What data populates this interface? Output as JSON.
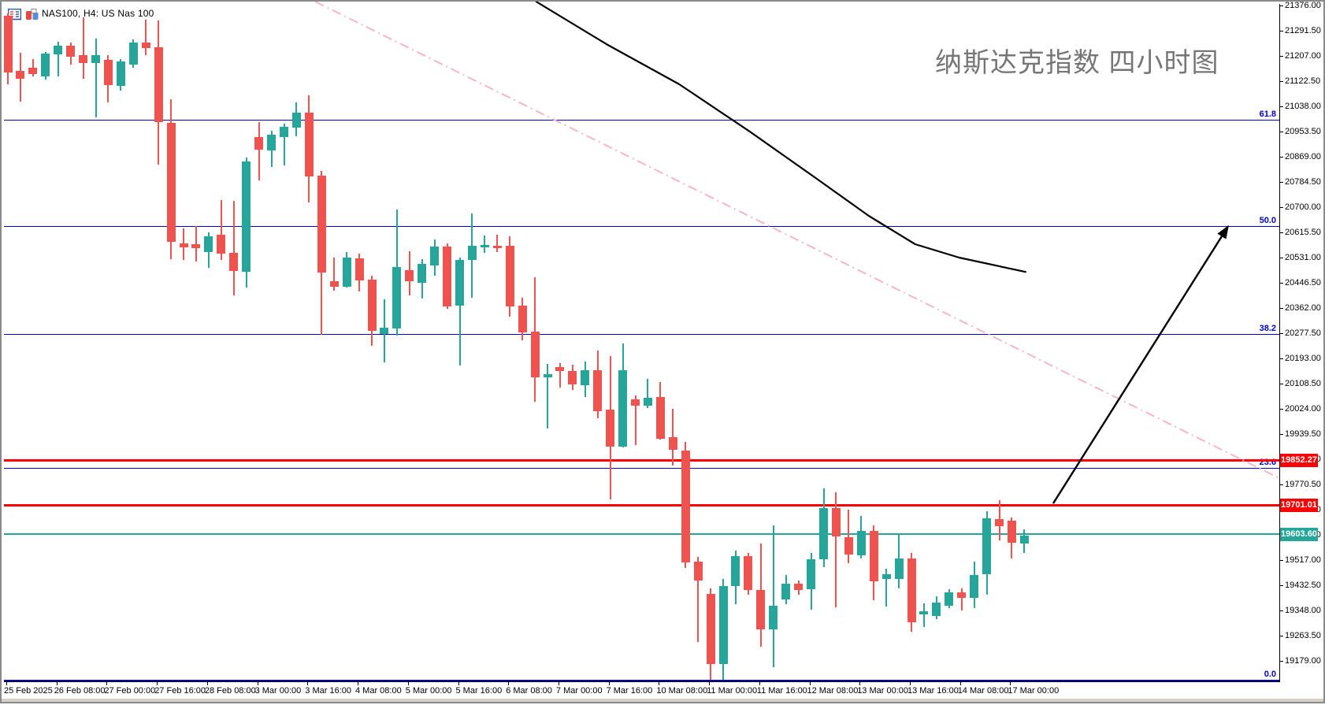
{
  "window": {
    "symbol_label": "NAS100, H4:  US Nas 100",
    "icons": [
      {
        "name": "quotes-icon"
      },
      {
        "name": "charts-icon"
      }
    ]
  },
  "title": {
    "text": "纳斯达克指数 四小时图",
    "color": "#767676"
  },
  "colors": {
    "background": "#ffffff",
    "up_candle": "#26a69a",
    "down_candle": "#ef5350",
    "fib_line": "#0000c8",
    "resistance_line": "#ff0000",
    "support_teal_line": "#26a69a",
    "pink_trendline": "#f5b6c8",
    "annotation_black": "#000000",
    "axis_text": "#000000",
    "tag_text": "#ffffff"
  },
  "chart_data": {
    "type": "candlestick",
    "symbol": "NAS100",
    "timeframe": "H4",
    "description": "US Nas 100",
    "grid": false,
    "ylim": [
      19110.4,
      21389.2
    ],
    "y_ticks": [
      "21376.00",
      "21291.50",
      "21207.00",
      "21122.50",
      "21038.00",
      "20953.50",
      "20869.00",
      "20784.50",
      "20700.00",
      "20615.50",
      "20531.00",
      "20446.50",
      "20362.00",
      "20277.50",
      "20193.00",
      "20108.50",
      "20024.00",
      "19939.50",
      "19855.00",
      "19770.50",
      "19686.00",
      "19601.50",
      "19517.00",
      "19432.50",
      "19348.00",
      "19263.50",
      "19179.00"
    ],
    "x_ticks": [
      "25 Feb 2025",
      "26 Feb 08:00",
      "27 Feb 00:00",
      "27 Feb 16:00",
      "28 Feb 08:00",
      "3 Mar 00:00",
      "3 Mar 16:00",
      "4 Mar 08:00",
      "5 Mar 00:00",
      "5 Mar 16:00",
      "6 Mar 08:00",
      "7 Mar 00:00",
      "7 Mar 16:00",
      "10 Mar 08:00",
      "11 Mar 00:00",
      "11 Mar 16:00",
      "12 Mar 08:00",
      "13 Mar 00:00",
      "13 Mar 16:00",
      "14 Mar 08:00",
      "17 Mar 00:00"
    ],
    "bars_per_x_tick": 4,
    "candles": [
      [
        21342,
        21350,
        21112,
        21152
      ],
      [
        21157,
        21218,
        21054,
        21130
      ],
      [
        21167,
        21196,
        21138,
        21146
      ],
      [
        21138,
        21220,
        21128,
        21215
      ],
      [
        21212,
        21254,
        21138,
        21241
      ],
      [
        21241,
        21252,
        21178,
        21204
      ],
      [
        21210,
        21336,
        21130,
        21183
      ],
      [
        21183,
        21265,
        21001,
        21210
      ],
      [
        21194,
        21210,
        21051,
        21109
      ],
      [
        21107,
        21196,
        21091,
        21189
      ],
      [
        21178,
        21262,
        21167,
        21252
      ],
      [
        21252,
        21328,
        21210,
        21233
      ],
      [
        21236,
        21326,
        20843,
        20985
      ],
      [
        20983,
        21062,
        20526,
        20584
      ],
      [
        20578,
        20629,
        20523,
        20565
      ],
      [
        20576,
        20637,
        20518,
        20563
      ],
      [
        20550,
        20616,
        20497,
        20602
      ],
      [
        20608,
        20724,
        20523,
        20544
      ],
      [
        20547,
        20721,
        20404,
        20486
      ],
      [
        20484,
        20866,
        20431,
        20853
      ],
      [
        20935,
        20985,
        20790,
        20893
      ],
      [
        20890,
        20956,
        20835,
        20943
      ],
      [
        20935,
        20980,
        20840,
        20969
      ],
      [
        20967,
        21051,
        20938,
        21017
      ],
      [
        21017,
        21075,
        20716,
        20803
      ],
      [
        20806,
        20822,
        20272,
        20481
      ],
      [
        20452,
        20531,
        20420,
        20433
      ],
      [
        20433,
        20550,
        20431,
        20531
      ],
      [
        20528,
        20544,
        20417,
        20455
      ],
      [
        20457,
        20470,
        20235,
        20285
      ],
      [
        20275,
        20391,
        20180,
        20296
      ],
      [
        20293,
        20692,
        20270,
        20499
      ],
      [
        20489,
        20552,
        20404,
        20452
      ],
      [
        20447,
        20526,
        20394,
        20510
      ],
      [
        20505,
        20592,
        20470,
        20568
      ],
      [
        20568,
        20578,
        20359,
        20367
      ],
      [
        20370,
        20531,
        20169,
        20523
      ],
      [
        20523,
        20679,
        20396,
        20571
      ],
      [
        20565,
        20605,
        20547,
        20573
      ],
      [
        20571,
        20608,
        20550,
        20563
      ],
      [
        20571,
        20602,
        20333,
        20367
      ],
      [
        20370,
        20396,
        20254,
        20280
      ],
      [
        20283,
        20465,
        20048,
        20130
      ],
      [
        20130,
        20174,
        19958,
        20140
      ],
      [
        20164,
        20177,
        20095,
        20151
      ],
      [
        20151,
        20172,
        20087,
        20106
      ],
      [
        20103,
        20182,
        20064,
        20154
      ],
      [
        20154,
        20219,
        19992,
        20016
      ],
      [
        20021,
        20201,
        19720,
        19897
      ],
      [
        19897,
        20243,
        19894,
        20154
      ],
      [
        20055,
        20069,
        19902,
        20035
      ],
      [
        20035,
        20124,
        20027,
        20061
      ],
      [
        20064,
        20114,
        19921,
        19924
      ],
      [
        19929,
        20024,
        19834,
        19887
      ],
      [
        19884,
        19913,
        19491,
        19509
      ],
      [
        19512,
        19528,
        19242,
        19448
      ],
      [
        19404,
        19422,
        19116,
        19168
      ],
      [
        19168,
        19454,
        19116,
        19430
      ],
      [
        19430,
        19549,
        19369,
        19530
      ],
      [
        19530,
        19541,
        19401,
        19417
      ],
      [
        19417,
        19573,
        19227,
        19285
      ],
      [
        19285,
        19633,
        19158,
        19364
      ],
      [
        19385,
        19467,
        19369,
        19438
      ],
      [
        19438,
        19448,
        19401,
        19417
      ],
      [
        19420,
        19541,
        19351,
        19520
      ],
      [
        19520,
        19757,
        19494,
        19691
      ],
      [
        19691,
        19744,
        19359,
        19596
      ],
      [
        19594,
        19686,
        19507,
        19536
      ],
      [
        19533,
        19665,
        19523,
        19615
      ],
      [
        19615,
        19633,
        19382,
        19446
      ],
      [
        19454,
        19488,
        19361,
        19470
      ],
      [
        19454,
        19602,
        19422,
        19523
      ],
      [
        19523,
        19541,
        19277,
        19308
      ],
      [
        19335,
        19372,
        19293,
        19345
      ],
      [
        19330,
        19396,
        19319,
        19374
      ],
      [
        19364,
        19420,
        19356,
        19409
      ],
      [
        19409,
        19422,
        19348,
        19390
      ],
      [
        19390,
        19512,
        19356,
        19467
      ],
      [
        19470,
        19681,
        19401,
        19657
      ],
      [
        19654,
        19718,
        19583,
        19630
      ],
      [
        19649,
        19660,
        19523,
        19575
      ],
      [
        19573,
        19620,
        19541,
        19599
      ]
    ],
    "fib_levels": [
      {
        "label": "61.8",
        "price": 20993
      },
      {
        "label": "50.0",
        "price": 20637
      },
      {
        "label": "38.2",
        "price": 20276
      },
      {
        "label": "23.6",
        "price": 19826
      },
      {
        "label": "0.0",
        "price": 19116
      }
    ],
    "h_lines": [
      {
        "label": "19852.27",
        "price": 19852.27,
        "color": "#ff0000",
        "width": 3
      },
      {
        "label": "19701.01",
        "price": 19701.01,
        "color": "#ff0000",
        "width": 3
      },
      {
        "label": "19603.60",
        "price": 19603.6,
        "color": "#26a69a",
        "width": 2
      }
    ],
    "annotations": {
      "trend_curve": [
        [
          42.1,
          21389
        ],
        [
          47.8,
          21244
        ],
        [
          53.5,
          21112
        ],
        [
          59.1,
          20954
        ],
        [
          64.2,
          20803
        ],
        [
          68.6,
          20671
        ],
        [
          72.3,
          20576
        ],
        [
          75.8,
          20531
        ],
        [
          81.1,
          20483
        ]
      ],
      "arrow": {
        "from": [
          83.3,
          19707
        ],
        "to": [
          97.3,
          20640
        ]
      },
      "pink_trendline": {
        "from": [
          24.5,
          21389
        ],
        "to": [
          101.3,
          19792
        ],
        "style": "dash-dot"
      }
    }
  }
}
